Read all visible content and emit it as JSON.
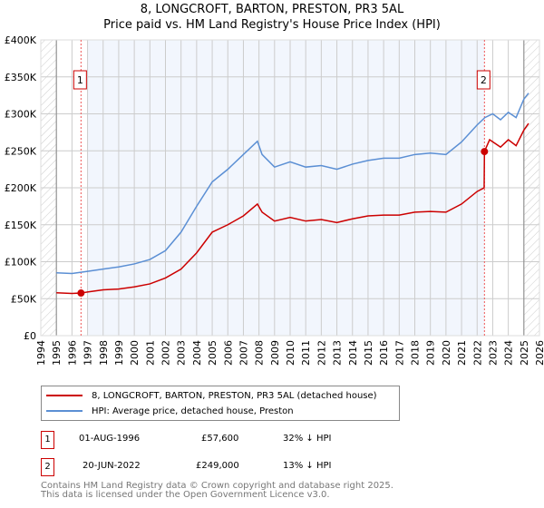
{
  "chart_data": {
    "type": "line",
    "title": "8, LONGCROFT, BARTON, PRESTON, PR3 5AL",
    "subtitle": "Price paid vs. HM Land Registry's House Price Index (HPI)",
    "xlim": [
      1994,
      2026
    ],
    "ylim": [
      0,
      400000
    ],
    "y_ticks": [
      {
        "v": 0,
        "label": "£0"
      },
      {
        "v": 50000,
        "label": "£50K"
      },
      {
        "v": 100000,
        "label": "£100K"
      },
      {
        "v": 150000,
        "label": "£150K"
      },
      {
        "v": 200000,
        "label": "£200K"
      },
      {
        "v": 250000,
        "label": "£250K"
      },
      {
        "v": 300000,
        "label": "£300K"
      },
      {
        "v": 350000,
        "label": "£350K"
      },
      {
        "v": 400000,
        "label": "£400K"
      }
    ],
    "x_ticks": [
      "1994",
      "1995",
      "1996",
      "1997",
      "1998",
      "1999",
      "2000",
      "2001",
      "2002",
      "2003",
      "2004",
      "2005",
      "2006",
      "2007",
      "2008",
      "2009",
      "2010",
      "2011",
      "2012",
      "2013",
      "2014",
      "2015",
      "2016",
      "2017",
      "2018",
      "2019",
      "2020",
      "2021",
      "2022",
      "2023",
      "2024",
      "2025",
      "2026"
    ],
    "grid": true,
    "series": [
      {
        "name": "8, LONGCROFT, BARTON, PRESTON, PR3 5AL (detached house)",
        "color": "#cc0000",
        "x": [
          1995,
          1996,
          1996.58,
          1997,
          1998,
          1999,
          2000,
          2001,
          2002,
          2003,
          2004,
          2005,
          2006,
          2007,
          2007.9,
          2008.2,
          2009,
          2010,
          2011,
          2012,
          2013,
          2014,
          2015,
          2016,
          2017,
          2018,
          2019,
          2020,
          2021,
          2022,
          2022.45,
          2022.47,
          2022.8,
          2023.5,
          2024,
          2024.5,
          2025,
          2025.3
        ],
        "y": [
          58000,
          57000,
          57600,
          59000,
          62000,
          63000,
          66000,
          70000,
          78000,
          90000,
          112000,
          140000,
          150000,
          162000,
          178000,
          167000,
          155000,
          160000,
          155000,
          157000,
          153000,
          158000,
          162000,
          163000,
          163000,
          167000,
          168000,
          167000,
          178000,
          195000,
          200000,
          249000,
          265000,
          255000,
          265000,
          257000,
          278000,
          287000
        ]
      },
      {
        "name": "HPI: Average price, detached house, Preston",
        "color": "#5b8fd4",
        "x": [
          1995,
          1996,
          1997,
          1998,
          1999,
          2000,
          2001,
          2002,
          2003,
          2004,
          2005,
          2006,
          2007,
          2007.9,
          2008.2,
          2009,
          2010,
          2011,
          2012,
          2013,
          2014,
          2015,
          2016,
          2017,
          2018,
          2019,
          2020,
          2021,
          2022,
          2022.5,
          2023,
          2023.5,
          2024,
          2024.5,
          2025,
          2025.3
        ],
        "y": [
          85000,
          84000,
          87000,
          90000,
          93000,
          97000,
          103000,
          115000,
          140000,
          175000,
          208000,
          225000,
          245000,
          263000,
          245000,
          228000,
          235000,
          228000,
          230000,
          225000,
          232000,
          237000,
          240000,
          240000,
          245000,
          247000,
          245000,
          262000,
          285000,
          295000,
          300000,
          292000,
          302000,
          295000,
          320000,
          328000
        ]
      }
    ],
    "sales": [
      {
        "id": "1",
        "x": 1996.58,
        "y": 57600,
        "date": "01-AUG-1996",
        "price": "£57,600",
        "hpi": "32% ↓ HPI"
      },
      {
        "id": "2",
        "x": 2022.47,
        "y": 249000,
        "date": "20-JUN-2022",
        "price": "£249,000",
        "hpi": "13% ↓ HPI"
      }
    ],
    "legend_placement": "bottom"
  },
  "footer": {
    "line1": "Contains HM Land Registry data © Crown copyright and database right 2025.",
    "line2": "This data is licensed under the Open Government Licence v3.0."
  }
}
